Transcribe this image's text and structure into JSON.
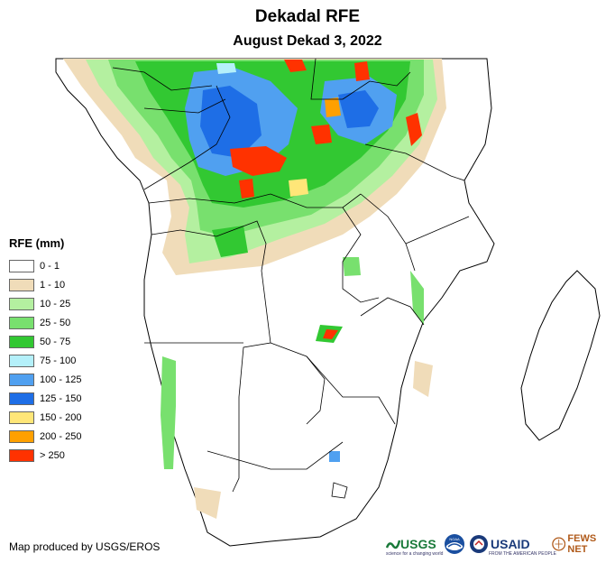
{
  "header": {
    "title": "Dekadal RFE",
    "subtitle": "August Dekad 3, 2022"
  },
  "legend": {
    "title": "RFE (mm)",
    "items": [
      {
        "label": "0 - 1",
        "color": "#ffffff"
      },
      {
        "label": "1 - 10",
        "color": "#f0dcb9"
      },
      {
        "label": "10 - 25",
        "color": "#b4f0a0"
      },
      {
        "label": "25 - 50",
        "color": "#78e06e"
      },
      {
        "label": "50 - 75",
        "color": "#32c832"
      },
      {
        "label": "75 - 100",
        "color": "#b4f0fa"
      },
      {
        "label": "100 - 125",
        "color": "#50a0f0"
      },
      {
        "label": "125 - 150",
        "color": "#1e6ee6"
      },
      {
        "label": "150 - 200",
        "color": "#ffe678"
      },
      {
        "label": "200 - 250",
        "color": "#ffa000"
      },
      {
        "label": "> 250",
        "color": "#ff3200"
      }
    ]
  },
  "footer": {
    "credit": "Map produced by USGS/EROS"
  },
  "logos": {
    "usgs": "USGS",
    "usgs_tagline": "science for a changing world",
    "noaa": "NOAA",
    "usaid": "USAID",
    "usaid_tagline": "FROM THE AMERICAN PEOPLE",
    "fewsnet": "FEWS NET"
  },
  "map": {
    "colors": {
      "land": "#ffffff",
      "border": "#000000",
      "c1": "#f0dcb9",
      "c2": "#b4f0a0",
      "c3": "#78e06e",
      "c4": "#32c832",
      "c5": "#b4f0fa",
      "c6": "#50a0f0",
      "c7": "#1e6ee6",
      "c8": "#ffe678",
      "c9": "#ffa000",
      "c10": "#ff3200"
    }
  }
}
